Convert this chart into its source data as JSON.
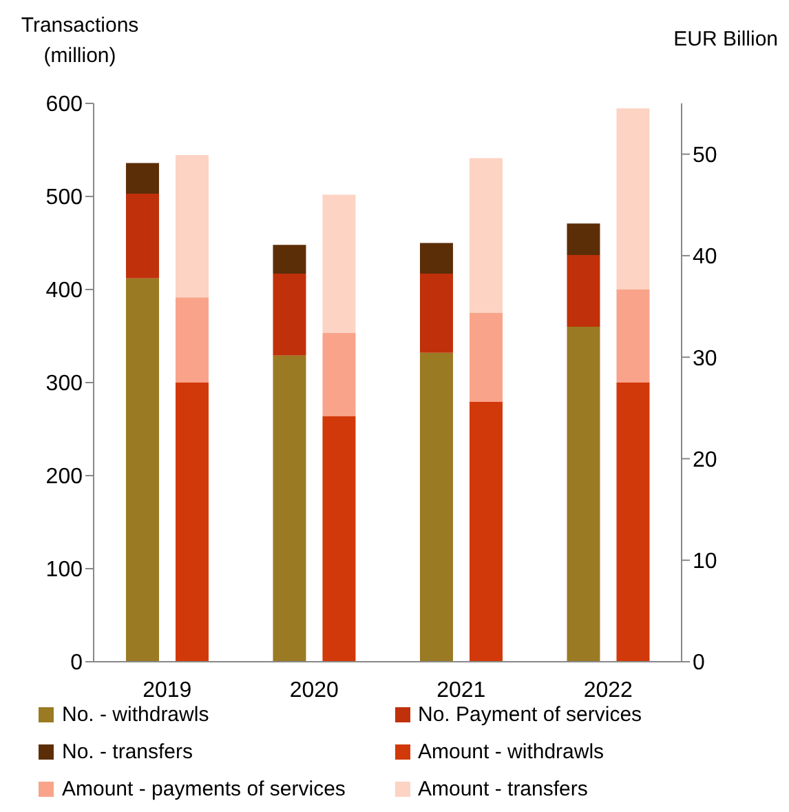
{
  "chart_data": {
    "type": "bar",
    "stacked": true,
    "ylabel": "Transactions (million)",
    "y2label": "EUR Billion",
    "categories": [
      "2019",
      "2020",
      "2021",
      "2022"
    ],
    "ylim": [
      0,
      600
    ],
    "yticks": [
      0,
      100,
      200,
      300,
      400,
      500,
      600
    ],
    "y2lim": [
      0,
      55
    ],
    "y2ticks": [
      0,
      10,
      20,
      30,
      40,
      50
    ],
    "legend": "bottom",
    "series": [
      {
        "name": "No. - withdrawls",
        "color": "#9a7a22",
        "values": [
          412,
          329,
          332,
          360
        ]
      },
      {
        "name": "No. Payment of services",
        "color": "#c0300a",
        "values": [
          91,
          88,
          85,
          77
        ]
      },
      {
        "name": "No. - transfers",
        "color": "#5c2e08",
        "values": [
          33,
          31,
          33,
          34
        ]
      },
      {
        "name": "Amount - withdrawls",
        "color": "#d2390a",
        "axis": "y2",
        "values": [
          27.5,
          24.2,
          25.6,
          27.5
        ]
      },
      {
        "name": "Amount - payments of services",
        "color": "#f9a48a",
        "axis": "y2",
        "values": [
          8.4,
          8.2,
          8.8,
          9.2
        ]
      },
      {
        "name": "Amount - transfers",
        "color": "#fdd3c4",
        "axis": "y2",
        "values": [
          14.0,
          13.6,
          15.2,
          17.8
        ]
      }
    ]
  }
}
